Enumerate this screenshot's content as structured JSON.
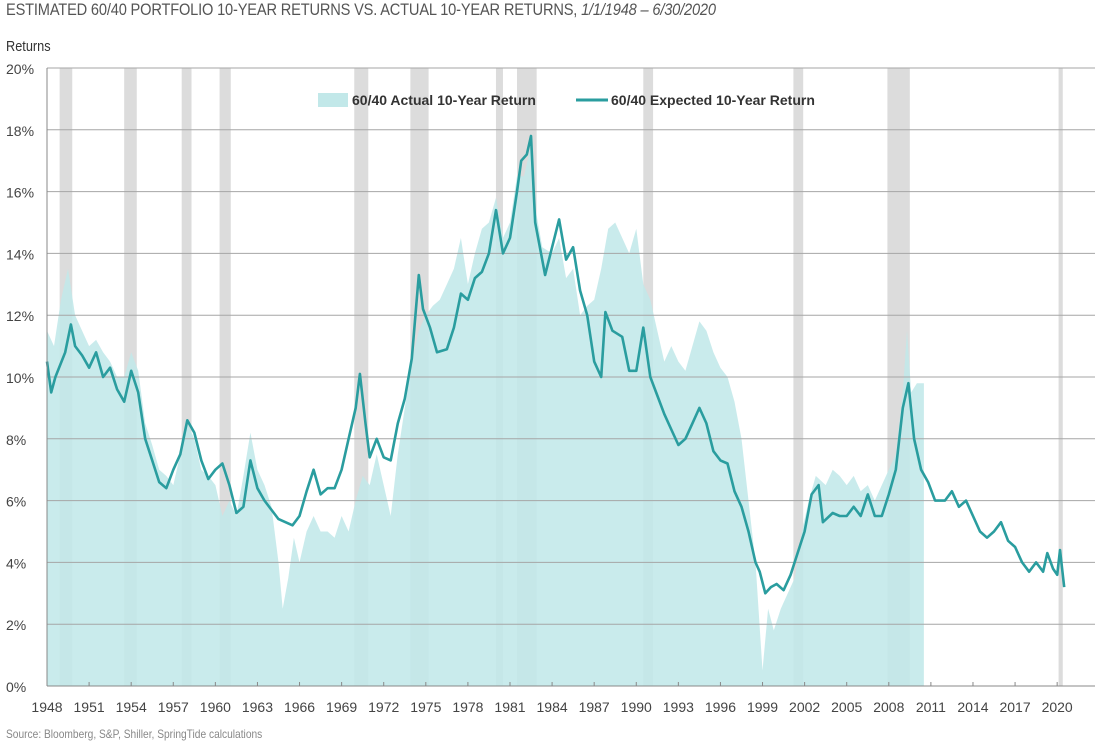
{
  "chart_data": {
    "type": "area+line",
    "title": "ESTIMATED 60/40 PORTFOLIO 10-YEAR RETURNS VS. ACTUAL 10-YEAR RETURNS,",
    "title_range": "1/1/1948 – 6/30/2020",
    "ylabel": "Returns",
    "xlabel": "",
    "source": "Source: Bloomberg, S&P, Shiller, SpringTide calculations",
    "ylim": [
      0,
      20
    ],
    "xlim": [
      1948,
      2020.5
    ],
    "y_ticks": [
      "0%",
      "2%",
      "4%",
      "6%",
      "8%",
      "10%",
      "12%",
      "14%",
      "16%",
      "18%",
      "20%"
    ],
    "x_ticks": [
      "1948",
      "1951",
      "1954",
      "1957",
      "1960",
      "1963",
      "1966",
      "1969",
      "1972",
      "1975",
      "1978",
      "1981",
      "1984",
      "1987",
      "1990",
      "1993",
      "1996",
      "1999",
      "2002",
      "2005",
      "2008",
      "2011",
      "2014",
      "2017",
      "2020"
    ],
    "grid": "horizontal",
    "legend_position": "top-center",
    "colors": {
      "actual": "#c2e8e9",
      "expected": "#2a9d9f",
      "recession": "#d6d6d6"
    },
    "recession_periods": [
      [
        1948.9,
        1949.8
      ],
      [
        1953.5,
        1954.4
      ],
      [
        1957.6,
        1958.3
      ],
      [
        1960.3,
        1961.1
      ],
      [
        1969.9,
        1970.9
      ],
      [
        1973.9,
        1975.2
      ],
      [
        1980.0,
        1980.5
      ],
      [
        1981.5,
        1982.9
      ],
      [
        1990.5,
        1991.2
      ],
      [
        2001.2,
        2001.9
      ],
      [
        2007.9,
        2009.5
      ],
      [
        2020.1,
        2020.4
      ]
    ],
    "series": [
      {
        "name": "60/40 Actual 10-Year Return",
        "kind": "area",
        "points": [
          [
            1948.0,
            11.5
          ],
          [
            1948.5,
            11.0
          ],
          [
            1949.0,
            12.5
          ],
          [
            1949.5,
            13.5
          ],
          [
            1950.0,
            12.0
          ],
          [
            1950.5,
            11.5
          ],
          [
            1951.0,
            11.0
          ],
          [
            1951.5,
            11.2
          ],
          [
            1952.0,
            10.8
          ],
          [
            1952.5,
            10.5
          ],
          [
            1953.0,
            10.0
          ],
          [
            1953.5,
            10.0
          ],
          [
            1954.0,
            10.8
          ],
          [
            1954.5,
            10.2
          ],
          [
            1955.0,
            8.5
          ],
          [
            1955.5,
            7.8
          ],
          [
            1956.0,
            7.0
          ],
          [
            1956.5,
            6.8
          ],
          [
            1957.0,
            6.5
          ],
          [
            1957.5,
            7.5
          ],
          [
            1958.0,
            8.5
          ],
          [
            1958.5,
            8.0
          ],
          [
            1959.0,
            7.0
          ],
          [
            1959.5,
            6.8
          ],
          [
            1960.0,
            6.5
          ],
          [
            1960.5,
            5.5
          ],
          [
            1961.0,
            6.0
          ],
          [
            1961.5,
            5.5
          ],
          [
            1962.0,
            6.8
          ],
          [
            1962.5,
            8.2
          ],
          [
            1963.0,
            7.0
          ],
          [
            1963.5,
            6.5
          ],
          [
            1964.0,
            5.8
          ],
          [
            1964.5,
            4.0
          ],
          [
            1964.8,
            2.5
          ],
          [
            1965.2,
            3.5
          ],
          [
            1965.6,
            4.8
          ],
          [
            1966.0,
            4.0
          ],
          [
            1966.5,
            5.0
          ],
          [
            1967.0,
            5.5
          ],
          [
            1967.5,
            5.0
          ],
          [
            1968.0,
            5.0
          ],
          [
            1968.5,
            4.8
          ],
          [
            1969.0,
            5.5
          ],
          [
            1969.5,
            5.0
          ],
          [
            1970.0,
            6.0
          ],
          [
            1970.5,
            6.8
          ],
          [
            1971.0,
            6.5
          ],
          [
            1971.5,
            7.5
          ],
          [
            1972.0,
            6.5
          ],
          [
            1972.5,
            5.5
          ],
          [
            1973.0,
            7.5
          ],
          [
            1973.5,
            9.0
          ],
          [
            1974.0,
            10.5
          ],
          [
            1974.5,
            11.5
          ],
          [
            1975.0,
            12.0
          ],
          [
            1975.5,
            12.3
          ],
          [
            1976.0,
            12.5
          ],
          [
            1976.5,
            13.0
          ],
          [
            1977.0,
            13.5
          ],
          [
            1977.5,
            14.5
          ],
          [
            1978.0,
            13.0
          ],
          [
            1978.5,
            14.0
          ],
          [
            1979.0,
            14.8
          ],
          [
            1979.5,
            15.0
          ],
          [
            1980.0,
            15.8
          ],
          [
            1980.5,
            14.5
          ],
          [
            1981.0,
            15.0
          ],
          [
            1981.5,
            16.5
          ],
          [
            1982.0,
            16.5
          ],
          [
            1982.5,
            17.5
          ],
          [
            1982.8,
            15.5
          ],
          [
            1983.3,
            14.2
          ],
          [
            1984.0,
            14.0
          ],
          [
            1984.5,
            14.5
          ],
          [
            1985.0,
            13.2
          ],
          [
            1985.5,
            13.5
          ],
          [
            1986.0,
            12.0
          ],
          [
            1986.5,
            12.3
          ],
          [
            1987.0,
            12.5
          ],
          [
            1987.5,
            13.5
          ],
          [
            1988.0,
            14.8
          ],
          [
            1988.5,
            15.0
          ],
          [
            1989.0,
            14.5
          ],
          [
            1989.5,
            14.0
          ],
          [
            1990.0,
            14.8
          ],
          [
            1990.5,
            13.0
          ],
          [
            1991.0,
            12.5
          ],
          [
            1991.5,
            11.5
          ],
          [
            1992.0,
            10.5
          ],
          [
            1992.5,
            11.0
          ],
          [
            1993.0,
            10.5
          ],
          [
            1993.5,
            10.2
          ],
          [
            1994.0,
            11.0
          ],
          [
            1994.5,
            11.8
          ],
          [
            1995.0,
            11.5
          ],
          [
            1995.5,
            10.8
          ],
          [
            1996.0,
            10.3
          ],
          [
            1996.5,
            10.0
          ],
          [
            1997.0,
            9.2
          ],
          [
            1997.5,
            8.0
          ],
          [
            1998.0,
            6.0
          ],
          [
            1998.5,
            4.0
          ],
          [
            1999.0,
            0.5
          ],
          [
            1999.4,
            2.5
          ],
          [
            1999.8,
            1.8
          ],
          [
            2000.3,
            2.5
          ],
          [
            2000.8,
            3.0
          ],
          [
            2001.3,
            3.5
          ],
          [
            2001.8,
            5.0
          ],
          [
            2002.3,
            6.0
          ],
          [
            2002.8,
            6.8
          ],
          [
            2003.5,
            6.5
          ],
          [
            2004.0,
            7.0
          ],
          [
            2004.5,
            6.8
          ],
          [
            2005.0,
            6.5
          ],
          [
            2005.5,
            6.8
          ],
          [
            2006.0,
            6.3
          ],
          [
            2006.5,
            6.5
          ],
          [
            2007.0,
            6.0
          ],
          [
            2007.5,
            6.5
          ],
          [
            2008.0,
            7.0
          ],
          [
            2008.5,
            7.5
          ],
          [
            2009.0,
            9.5
          ],
          [
            2009.3,
            11.5
          ],
          [
            2009.6,
            9.5
          ],
          [
            2010.0,
            9.8
          ],
          [
            2010.5,
            9.8
          ]
        ]
      },
      {
        "name": "60/40 Expected 10-Year Return",
        "kind": "line",
        "points": [
          [
            1948.0,
            10.5
          ],
          [
            1948.3,
            9.5
          ],
          [
            1948.6,
            10.0
          ],
          [
            1949.3,
            10.8
          ],
          [
            1949.7,
            11.7
          ],
          [
            1950.0,
            11.0
          ],
          [
            1950.5,
            10.7
          ],
          [
            1951.0,
            10.3
          ],
          [
            1951.5,
            10.8
          ],
          [
            1952.0,
            10.0
          ],
          [
            1952.5,
            10.3
          ],
          [
            1953.0,
            9.6
          ],
          [
            1953.5,
            9.2
          ],
          [
            1954.0,
            10.2
          ],
          [
            1954.5,
            9.5
          ],
          [
            1955.0,
            8.0
          ],
          [
            1955.5,
            7.3
          ],
          [
            1956.0,
            6.6
          ],
          [
            1956.5,
            6.4
          ],
          [
            1957.0,
            7.0
          ],
          [
            1957.5,
            7.5
          ],
          [
            1958.0,
            8.6
          ],
          [
            1958.5,
            8.2
          ],
          [
            1959.0,
            7.3
          ],
          [
            1959.5,
            6.7
          ],
          [
            1960.0,
            7.0
          ],
          [
            1960.5,
            7.2
          ],
          [
            1961.0,
            6.5
          ],
          [
            1961.5,
            5.6
          ],
          [
            1962.0,
            5.8
          ],
          [
            1962.5,
            7.3
          ],
          [
            1963.0,
            6.4
          ],
          [
            1963.5,
            6.0
          ],
          [
            1964.0,
            5.7
          ],
          [
            1964.5,
            5.4
          ],
          [
            1965.0,
            5.3
          ],
          [
            1965.5,
            5.2
          ],
          [
            1966.0,
            5.5
          ],
          [
            1966.5,
            6.3
          ],
          [
            1967.0,
            7.0
          ],
          [
            1967.5,
            6.2
          ],
          [
            1968.0,
            6.4
          ],
          [
            1968.5,
            6.4
          ],
          [
            1969.0,
            7.0
          ],
          [
            1969.5,
            8.0
          ],
          [
            1970.0,
            9.0
          ],
          [
            1970.3,
            10.1
          ],
          [
            1970.7,
            8.5
          ],
          [
            1971.0,
            7.4
          ],
          [
            1971.5,
            8.0
          ],
          [
            1972.0,
            7.4
          ],
          [
            1972.5,
            7.3
          ],
          [
            1973.0,
            8.5
          ],
          [
            1973.5,
            9.3
          ],
          [
            1974.0,
            10.6
          ],
          [
            1974.5,
            13.3
          ],
          [
            1974.8,
            12.2
          ],
          [
            1975.3,
            11.6
          ],
          [
            1975.8,
            10.8
          ],
          [
            1976.5,
            10.9
          ],
          [
            1977.0,
            11.6
          ],
          [
            1977.5,
            12.7
          ],
          [
            1978.0,
            12.5
          ],
          [
            1978.5,
            13.2
          ],
          [
            1979.0,
            13.4
          ],
          [
            1979.5,
            14.0
          ],
          [
            1980.0,
            15.4
          ],
          [
            1980.5,
            14.0
          ],
          [
            1981.0,
            14.5
          ],
          [
            1981.5,
            16.0
          ],
          [
            1981.8,
            17.0
          ],
          [
            1982.2,
            17.2
          ],
          [
            1982.5,
            17.8
          ],
          [
            1982.8,
            15.0
          ],
          [
            1983.5,
            13.3
          ],
          [
            1984.0,
            14.2
          ],
          [
            1984.5,
            15.1
          ],
          [
            1985.0,
            13.8
          ],
          [
            1985.5,
            14.2
          ],
          [
            1986.0,
            12.8
          ],
          [
            1986.5,
            12.0
          ],
          [
            1987.0,
            10.5
          ],
          [
            1987.5,
            10.0
          ],
          [
            1987.8,
            12.1
          ],
          [
            1988.3,
            11.5
          ],
          [
            1989.0,
            11.3
          ],
          [
            1989.5,
            10.2
          ],
          [
            1990.0,
            10.2
          ],
          [
            1990.5,
            11.6
          ],
          [
            1991.0,
            10.0
          ],
          [
            1991.5,
            9.4
          ],
          [
            1992.0,
            8.8
          ],
          [
            1992.5,
            8.3
          ],
          [
            1993.0,
            7.8
          ],
          [
            1993.5,
            8.0
          ],
          [
            1994.0,
            8.5
          ],
          [
            1994.5,
            9.0
          ],
          [
            1995.0,
            8.5
          ],
          [
            1995.5,
            7.6
          ],
          [
            1996.0,
            7.3
          ],
          [
            1996.5,
            7.2
          ],
          [
            1997.0,
            6.3
          ],
          [
            1997.5,
            5.8
          ],
          [
            1998.0,
            5.0
          ],
          [
            1998.5,
            4.0
          ],
          [
            1998.8,
            3.7
          ],
          [
            1999.2,
            3.0
          ],
          [
            1999.6,
            3.2
          ],
          [
            2000.0,
            3.3
          ],
          [
            2000.5,
            3.1
          ],
          [
            2001.0,
            3.6
          ],
          [
            2001.5,
            4.3
          ],
          [
            2002.0,
            5.0
          ],
          [
            2002.5,
            6.2
          ],
          [
            2003.0,
            6.5
          ],
          [
            2003.3,
            5.3
          ],
          [
            2004.0,
            5.6
          ],
          [
            2004.5,
            5.5
          ],
          [
            2005.0,
            5.5
          ],
          [
            2005.5,
            5.8
          ],
          [
            2006.0,
            5.5
          ],
          [
            2006.5,
            6.2
          ],
          [
            2007.0,
            5.5
          ],
          [
            2007.5,
            5.5
          ],
          [
            2008.0,
            6.2
          ],
          [
            2008.5,
            7.0
          ],
          [
            2009.0,
            9.0
          ],
          [
            2009.4,
            9.8
          ],
          [
            2009.8,
            8.0
          ],
          [
            2010.3,
            7.0
          ],
          [
            2010.8,
            6.6
          ],
          [
            2011.3,
            6.0
          ],
          [
            2012.0,
            6.0
          ],
          [
            2012.5,
            6.3
          ],
          [
            2013.0,
            5.8
          ],
          [
            2013.5,
            6.0
          ],
          [
            2014.0,
            5.5
          ],
          [
            2014.5,
            5.0
          ],
          [
            2015.0,
            4.8
          ],
          [
            2015.5,
            5.0
          ],
          [
            2016.0,
            5.3
          ],
          [
            2016.5,
            4.7
          ],
          [
            2017.0,
            4.5
          ],
          [
            2017.5,
            4.0
          ],
          [
            2018.0,
            3.7
          ],
          [
            2018.5,
            4.0
          ],
          [
            2019.0,
            3.7
          ],
          [
            2019.3,
            4.3
          ],
          [
            2019.7,
            3.8
          ],
          [
            2020.0,
            3.6
          ],
          [
            2020.2,
            4.4
          ],
          [
            2020.5,
            3.2
          ]
        ]
      }
    ]
  }
}
